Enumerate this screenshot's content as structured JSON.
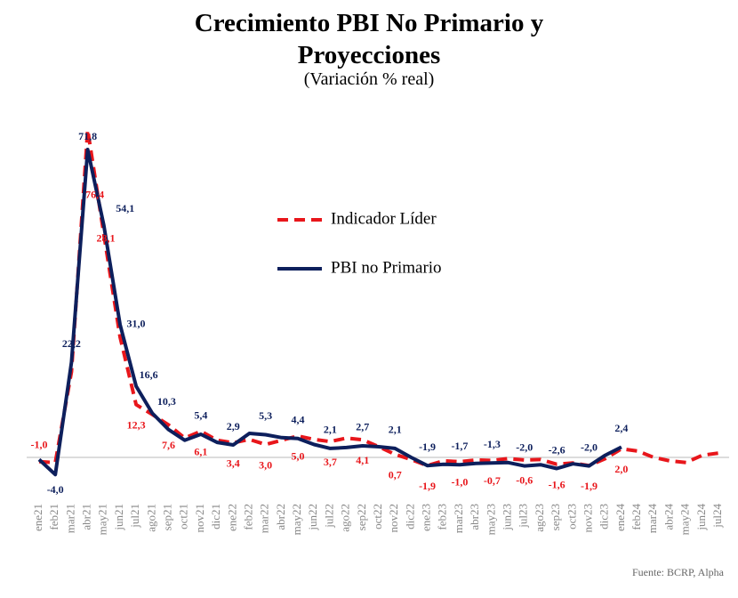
{
  "chart_data": {
    "type": "line",
    "title": "Crecimiento PBI No Primario y Proyecciones",
    "subtitle": "(Variación % real)",
    "source": "Fuente: BCRP, Alpha",
    "categories": [
      "ene21",
      "feb21",
      "mar21",
      "abr21",
      "may21",
      "jun21",
      "jul21",
      "ago21",
      "sep21",
      "oct21",
      "nov21",
      "dic21",
      "ene22",
      "feb22",
      "mar22",
      "abr22",
      "may22",
      "jun22",
      "jul22",
      "ago22",
      "sep22",
      "oct22",
      "nov22",
      "dic22",
      "ene23",
      "feb23",
      "mar23",
      "abr23",
      "may23",
      "jun23",
      "jul23",
      "ago23",
      "sep23",
      "oct23",
      "nov23",
      "dic23",
      "ene24",
      "feb24",
      "mar24",
      "abr24",
      "may24",
      "jun24",
      "jul24"
    ],
    "series": [
      {
        "name": "Indicador Líder",
        "color": "#e8161b",
        "dash": true,
        "values": [
          -1.0,
          -1.2,
          20.0,
          76.4,
          52.0,
          28.1,
          12.3,
          10.0,
          7.6,
          4.5,
          6.1,
          4.0,
          3.4,
          4.2,
          3.0,
          4.0,
          5.0,
          4.2,
          3.7,
          4.5,
          4.1,
          2.5,
          0.7,
          -0.5,
          -1.9,
          -0.8,
          -1.0,
          -0.6,
          -0.7,
          -0.3,
          -0.6,
          -0.5,
          -1.6,
          -1.3,
          -1.9,
          -0.3,
          2.0,
          1.5,
          0.0,
          -0.8,
          -1.2,
          0.5,
          1.0
        ],
        "value_labels": [
          "-1,0",
          null,
          null,
          "76,4",
          null,
          "28,1",
          "12,3",
          null,
          "7,6",
          null,
          "6,1",
          null,
          "3,4",
          null,
          "3,0",
          null,
          "5,0",
          null,
          "3,7",
          null,
          "4,1",
          null,
          "0,7",
          null,
          "-1,9",
          null,
          "-1,0",
          null,
          "-0,7",
          null,
          "-0,6",
          null,
          "-1,6",
          null,
          "-1,9",
          null,
          "2,0",
          null,
          null,
          null,
          null,
          null,
          null
        ]
      },
      {
        "name": "PBI no Primario",
        "color": "#0d1f5c",
        "dash": false,
        "values": [
          -0.5,
          -4.0,
          22.2,
          71.8,
          54.1,
          31.0,
          16.6,
          10.3,
          6.5,
          4.0,
          5.4,
          3.5,
          2.9,
          5.6,
          5.3,
          4.6,
          4.4,
          3.0,
          2.1,
          2.3,
          2.7,
          2.5,
          2.1,
          0.0,
          -1.9,
          -1.6,
          -1.7,
          -1.4,
          -1.3,
          -1.2,
          -2.0,
          -1.7,
          -2.6,
          -1.5,
          -2.0,
          0.5,
          2.4,
          null,
          null,
          null,
          null,
          null,
          null
        ],
        "value_labels": [
          null,
          "-4,0",
          "22,2",
          "71,8",
          "54,1",
          "31,0",
          "16,6",
          "10,3",
          null,
          null,
          "5,4",
          null,
          "2,9",
          null,
          "5,3",
          null,
          "4,4",
          null,
          "2,1",
          null,
          "2,7",
          null,
          "2,1",
          null,
          "-1,9",
          null,
          "-1,7",
          null,
          "-1,3",
          null,
          "-2,0",
          null,
          "-2,6",
          null,
          "-2,0",
          null,
          "2,4",
          null,
          null,
          null,
          null,
          null,
          null
        ]
      }
    ]
  }
}
